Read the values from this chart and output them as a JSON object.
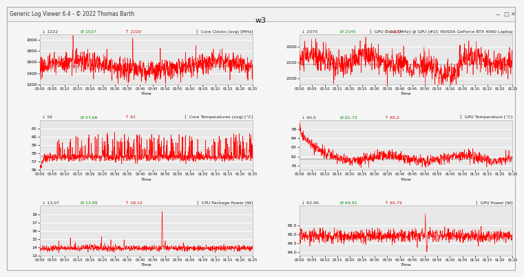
{
  "title": "w3",
  "window_title": "Generic Log Viewer 6.4 - © 2022 Thomas Barth",
  "background_color": "#f0f0f0",
  "plot_bg_color": "#e8e8e8",
  "line_color": "#ff0000",
  "min_color": "#333333",
  "avg_color": "#008800",
  "max_color": "#cc0000",
  "avg_line_color": "#aaaaaa",
  "grid_color": "#ffffff",
  "border_color": "#cccccc",
  "panels": [
    {
      "title": "Core Clocks (avg) [MHz]",
      "stats_min": "1222",
      "stats_avg": "1527",
      "stats_max": "2220",
      "ylim": [
        1200,
        2100
      ],
      "yticks": [
        1200,
        1400,
        1600,
        1800,
        2000
      ],
      "avg_val": 1527,
      "xlabel": "Time",
      "xtick_labels": [
        "00:00",
        "00:05",
        "00:10",
        "00:15",
        "00:20",
        "00:25",
        "00:30",
        "00:35",
        "00:40",
        "00:45",
        "00:50",
        "00:55",
        "01:00",
        "01:05",
        "01:10",
        "01:15",
        "01:20",
        "01:25"
      ]
    },
    {
      "title": "GPU Clock [MHz] @ GPU [#2]: NVIDIA GeForce RTX 4060 Laptop",
      "stats_min": "2070",
      "stats_avg": "2145",
      "stats_max": "2220",
      "ylim": [
        2080,
        2240
      ],
      "yticks": [
        2100,
        2150,
        2200
      ],
      "avg_val": 2145,
      "xlabel": "Time",
      "xtick_labels": [
        "00:00",
        "00:05",
        "00:10",
        "00:15",
        "00:20",
        "00:25",
        "00:30",
        "00:35",
        "00:40",
        "00:45",
        "00:50",
        "00:55",
        "01:00",
        "01:05",
        "01:10",
        "01:15",
        "01:20",
        "01:25"
      ]
    },
    {
      "title": "Core Temperatures (avg) [°C]",
      "stats_min": "56",
      "stats_avg": "57,66",
      "stats_max": "61",
      "ylim": [
        56,
        62
      ],
      "yticks": [
        56,
        57,
        58,
        59,
        60,
        61
      ],
      "avg_val": 57.66,
      "xlabel": "Time",
      "xtick_labels": [
        "00:00",
        "00:05",
        "00:10",
        "00:15",
        "00:20",
        "00:25",
        "00:30",
        "00:35",
        "00:40",
        "00:45",
        "00:50",
        "00:55",
        "01:00",
        "01:05",
        "01:10",
        "01:15",
        "01:20",
        "01:25"
      ]
    },
    {
      "title": "GPU Temperature [°C]",
      "stats_min": "60,5",
      "stats_avg": "61,73",
      "stats_max": "65,2",
      "ylim": [
        60.5,
        66.0
      ],
      "yticks": [
        61,
        62,
        63,
        64,
        65
      ],
      "avg_val": 61.73,
      "xlabel": "Time",
      "xtick_labels": [
        "00:00",
        "00:05",
        "00:10",
        "00:15",
        "00:20",
        "00:25",
        "00:30",
        "00:35",
        "00:40",
        "00:45",
        "00:50",
        "00:55",
        "01:00",
        "01:05",
        "01:10",
        "01:15",
        "01:20",
        "01:25"
      ]
    },
    {
      "title": "CPU Package Power [W]",
      "stats_min": "13,07",
      "stats_avg": "13,89",
      "stats_max": "18,12",
      "ylim": [
        13,
        19
      ],
      "yticks": [
        13,
        14,
        15,
        16,
        17,
        18
      ],
      "avg_val": 13.89,
      "xlabel": "Time",
      "xtick_labels": [
        "00:00",
        "00:05",
        "00:10",
        "00:15",
        "00:20",
        "00:25",
        "00:30",
        "00:35",
        "00:40",
        "00:45",
        "00:50",
        "00:55",
        "01:00",
        "01:05",
        "01:10",
        "01:15",
        "01:20",
        "01:25"
      ]
    },
    {
      "title": "GPU Power [W]",
      "stats_min": "62,96",
      "stats_avg": "64,91",
      "stats_max": "65,75",
      "ylim": [
        63.8,
        66.6
      ],
      "yticks": [
        64,
        64.5,
        65,
        65.5
      ],
      "avg_val": 64.91,
      "xlabel": "Time",
      "xtick_labels": [
        "00:00",
        "00:05",
        "00:10",
        "00:15",
        "00:20",
        "00:25",
        "00:30",
        "00:35",
        "00:40",
        "00:45",
        "00:50",
        "00:55",
        "01:00",
        "01:05",
        "01:10",
        "01:15",
        "01:20",
        "01:25"
      ]
    }
  ]
}
